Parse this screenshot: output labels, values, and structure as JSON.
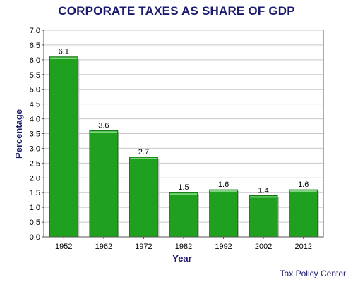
{
  "colors": {
    "bar_fill": "#1fa01f",
    "bar_top": "#7fd47f",
    "title": "#1a1a6e",
    "grid": "#c8c8c8"
  },
  "source": "Tax Policy Center",
  "chart_data": {
    "type": "bar",
    "title": "CORPORATE TAXES AS SHARE OF GDP",
    "xlabel": "Year",
    "ylabel": "Percentage",
    "categories": [
      "1952",
      "1962",
      "1972",
      "1982",
      "1992",
      "2002",
      "2012"
    ],
    "values": [
      6.1,
      3.6,
      2.7,
      1.5,
      1.6,
      1.4,
      1.6
    ],
    "data_labels": [
      "6.1",
      "3.6",
      "2.7",
      "1.5",
      "1.6",
      "1.4",
      "1.6"
    ],
    "ylim": [
      0,
      7.0
    ],
    "yticks": [
      "0.0",
      "0.5",
      "1.0",
      "1.5",
      "2.0",
      "2.5",
      "3.0",
      "3.5",
      "4.0",
      "4.5",
      "5.0",
      "5.5",
      "6.0",
      "6.5",
      "7.0"
    ],
    "grid": true,
    "legend": false
  }
}
